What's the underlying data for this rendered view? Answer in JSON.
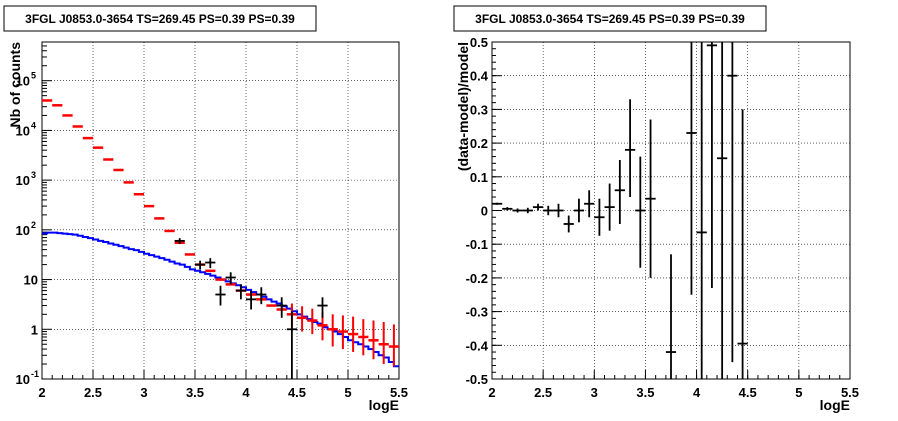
{
  "chart_data": [
    {
      "type": "line",
      "title": "3FGL J0853.0-3654 TS=269.45 PS=0.39 PS=0.39",
      "xlabel": "logE",
      "ylabel": "Nb of counts",
      "xlim": [
        2,
        5.5
      ],
      "ylim": [
        0.1,
        600000
      ],
      "y_scale": "log",
      "grid": true,
      "x_ticks": [
        "2",
        "2.5",
        "3",
        "3.5",
        "4",
        "4.5",
        "5",
        "5.5"
      ],
      "y_ticks": [
        {
          "v": 0.1,
          "label": "10",
          "sup": "-1"
        },
        {
          "v": 1,
          "label": "1",
          "sup": ""
        },
        {
          "v": 10,
          "label": "10",
          "sup": ""
        },
        {
          "v": 100,
          "label": "10",
          "sup": "2"
        },
        {
          "v": 1000,
          "label": "10",
          "sup": "3"
        },
        {
          "v": 10000,
          "label": "10",
          "sup": "4"
        },
        {
          "v": 100000,
          "label": "10",
          "sup": "5"
        }
      ],
      "colors": {
        "model_total": "#ff0000",
        "model_source": "#0000ff",
        "data": "#000000"
      },
      "bin_edges": [
        2.0,
        2.05,
        2.1,
        2.15,
        2.2,
        2.25,
        2.3,
        2.35,
        2.4,
        2.45,
        2.5,
        2.55,
        2.6,
        2.65,
        2.7,
        2.75,
        2.8,
        2.85,
        2.9,
        2.95,
        3.0,
        3.05,
        3.1,
        3.15,
        3.2,
        3.25,
        3.3,
        3.35,
        3.4,
        3.45,
        3.5,
        3.55,
        3.6,
        3.65,
        3.7,
        3.75,
        3.8,
        3.85,
        3.9,
        3.95,
        4.0,
        4.05,
        4.1,
        4.15,
        4.2,
        4.25,
        4.3,
        4.35,
        4.4,
        4.45,
        4.5,
        4.55,
        4.6,
        4.65,
        4.7,
        4.75,
        4.8,
        4.85,
        4.9,
        4.95,
        5.0,
        5.05,
        5.1,
        5.15,
        5.2,
        5.25,
        5.3,
        5.35,
        5.4,
        5.45,
        5.5
      ],
      "source_model_counts": [
        85,
        88,
        88,
        86,
        84,
        82,
        80,
        76,
        72,
        68,
        64,
        60,
        57,
        53,
        50,
        47,
        44,
        41,
        39,
        36,
        33,
        31,
        29,
        27,
        25,
        23,
        21,
        20,
        18,
        16,
        15,
        14,
        13,
        12,
        11,
        10,
        9.2,
        8.4,
        7.7,
        7.0,
        6.2,
        5.6,
        5.0,
        4.5,
        4.0,
        3.6,
        3.3,
        2.9,
        2.6,
        2.3,
        2.0,
        1.8,
        1.6,
        1.4,
        1.3,
        1.1,
        1.0,
        0.9,
        0.8,
        0.7,
        0.6,
        0.55,
        0.5,
        0.45,
        0.4,
        0.35,
        0.3,
        0.27,
        0.22,
        0.18
      ],
      "total_model": {
        "x": [
          2.05,
          2.15,
          2.25,
          2.35,
          2.45,
          2.55,
          2.65,
          2.75,
          2.85,
          2.95,
          3.05,
          3.15,
          3.25,
          3.35,
          3.45,
          3.55,
          3.65,
          3.75,
          3.85,
          3.95,
          4.05,
          4.15,
          4.25,
          4.35,
          4.45,
          4.55,
          4.65,
          4.75,
          4.85,
          4.95,
          5.05,
          5.15,
          5.25,
          5.35,
          5.45
        ],
        "y": [
          40000,
          32000,
          20000,
          12000,
          7000,
          4500,
          2600,
          1600,
          900,
          520,
          300,
          170,
          95,
          55,
          32,
          20,
          15,
          10,
          8,
          6,
          5,
          4,
          3,
          2.5,
          2,
          1.7,
          1.5,
          1.2,
          1.0,
          0.9,
          0.8,
          0.7,
          0.6,
          0.5,
          0.45
        ],
        "err_low": [
          0,
          0,
          0,
          0,
          0,
          0,
          0,
          0,
          0,
          0,
          0,
          0,
          0,
          0,
          0,
          0,
          0,
          0,
          0,
          0,
          0,
          0,
          0,
          0,
          0.9,
          0.8,
          0.7,
          0.6,
          0.55,
          0.5,
          0.45,
          0.4,
          0.35,
          0.3,
          0.27
        ],
        "err_high": [
          0,
          0,
          0,
          0,
          0,
          0,
          0,
          0,
          0,
          0,
          0,
          0,
          0,
          0,
          0,
          0,
          0,
          0,
          0,
          0,
          0,
          0,
          0,
          0,
          1.3,
          1.2,
          1.1,
          1.0,
          1.0,
          1.0,
          1.0,
          0.9,
          0.9,
          0.9,
          0.8
        ]
      },
      "data_points": [
        {
          "x": 3.35,
          "y": 60,
          "lo": 52,
          "hi": 68
        },
        {
          "x": 3.55,
          "y": 20,
          "lo": 16,
          "hi": 24
        },
        {
          "x": 3.65,
          "y": 22,
          "lo": 17,
          "hi": 27
        },
        {
          "x": 3.75,
          "y": 5,
          "lo": 3,
          "hi": 7.5
        },
        {
          "x": 3.85,
          "y": 11,
          "lo": 8,
          "hi": 14
        },
        {
          "x": 3.95,
          "y": 6,
          "lo": 4,
          "hi": 8
        },
        {
          "x": 4.05,
          "y": 4,
          "lo": 2.5,
          "hi": 6
        },
        {
          "x": 4.15,
          "y": 5,
          "lo": 3.2,
          "hi": 7
        },
        {
          "x": 4.35,
          "y": 3,
          "lo": 1.7,
          "hi": 4.4
        },
        {
          "x": 4.45,
          "y": 1,
          "lo": 0.1,
          "hi": 2.3
        },
        {
          "x": 4.75,
          "y": 3,
          "lo": 1.7,
          "hi": 4.4
        }
      ]
    },
    {
      "type": "scatter",
      "title": "3FGL J0853.0-3654 TS=269.45 PS=0.39 PS=0.39",
      "xlabel": "logE",
      "ylabel": "(data-model)/model",
      "xlim": [
        2,
        5.5
      ],
      "ylim": [
        -0.5,
        0.5
      ],
      "grid": true,
      "x_ticks": [
        "2",
        "2.5",
        "3",
        "3.5",
        "4",
        "4.5",
        "5",
        "5.5"
      ],
      "y_ticks": [
        "-0.5",
        "-0.4",
        "-0.3",
        "-0.2",
        "-0.1",
        "0",
        "0.1",
        "0.2",
        "0.3",
        "0.4",
        "0.5"
      ],
      "x_err": 0.05,
      "points": [
        {
          "x": 2.05,
          "y": 0.02,
          "lo": 0.017,
          "hi": 0.023
        },
        {
          "x": 2.15,
          "y": 0.005,
          "lo": 0.0,
          "hi": 0.01
        },
        {
          "x": 2.25,
          "y": 0.0,
          "lo": -0.006,
          "hi": 0.006
        },
        {
          "x": 2.35,
          "y": 0.0,
          "lo": -0.008,
          "hi": 0.008
        },
        {
          "x": 2.45,
          "y": 0.01,
          "lo": 0.0,
          "hi": 0.02
        },
        {
          "x": 2.55,
          "y": 0.0,
          "lo": -0.014,
          "hi": 0.014
        },
        {
          "x": 2.65,
          "y": 0.0,
          "lo": -0.02,
          "hi": 0.02
        },
        {
          "x": 2.75,
          "y": -0.04,
          "lo": -0.065,
          "hi": -0.015
        },
        {
          "x": 2.85,
          "y": 0.0,
          "lo": -0.035,
          "hi": 0.035
        },
        {
          "x": 2.95,
          "y": 0.02,
          "lo": -0.02,
          "hi": 0.06
        },
        {
          "x": 3.05,
          "y": -0.02,
          "lo": -0.075,
          "hi": 0.035
        },
        {
          "x": 3.15,
          "y": 0.01,
          "lo": -0.06,
          "hi": 0.08
        },
        {
          "x": 3.25,
          "y": 0.06,
          "lo": -0.04,
          "hi": 0.15
        },
        {
          "x": 3.35,
          "y": 0.18,
          "lo": 0.04,
          "hi": 0.33
        },
        {
          "x": 3.45,
          "y": 0.0,
          "lo": -0.17,
          "hi": 0.16
        },
        {
          "x": 3.55,
          "y": 0.035,
          "lo": -0.2,
          "hi": 0.27
        },
        {
          "x": 3.75,
          "y": -0.42,
          "lo": -0.5,
          "hi": -0.13
        },
        {
          "x": 3.95,
          "y": 0.23,
          "lo": -0.25,
          "hi": 0.5
        },
        {
          "x": 4.05,
          "y": -0.065,
          "lo": -0.5,
          "hi": 0.5
        },
        {
          "x": 4.15,
          "y": 0.49,
          "lo": -0.23,
          "hi": 0.5
        },
        {
          "x": 4.25,
          "y": 0.155,
          "lo": -0.5,
          "hi": 0.5
        },
        {
          "x": 4.35,
          "y": 0.4,
          "lo": -0.45,
          "hi": 0.5
        },
        {
          "x": 4.45,
          "y": -0.395,
          "lo": -0.5,
          "hi": 0.3
        }
      ]
    }
  ]
}
